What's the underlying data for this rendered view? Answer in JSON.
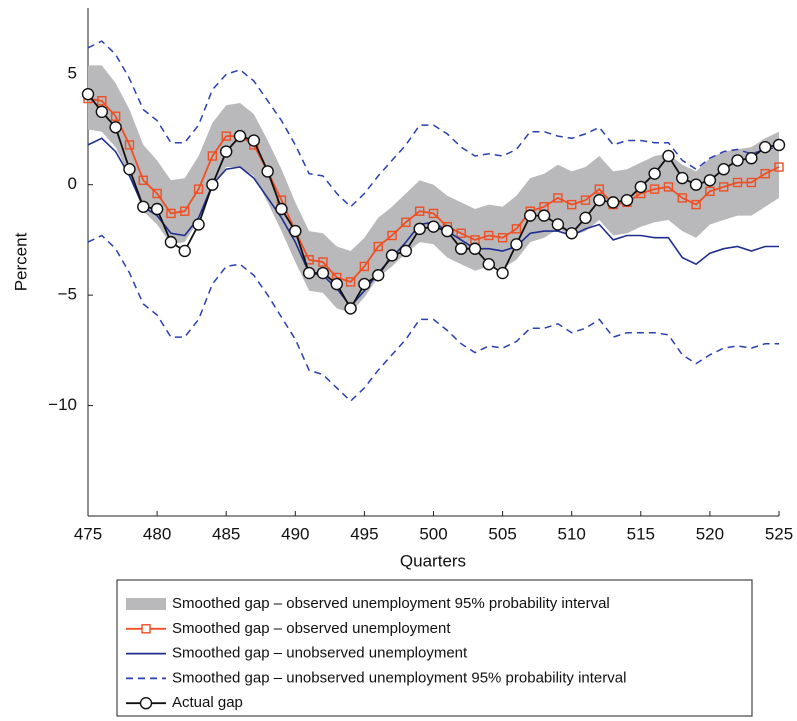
{
  "chart_data": {
    "type": "line",
    "x_label": "Quarters",
    "y_label": "Percent",
    "x": [
      475,
      476,
      477,
      478,
      479,
      480,
      481,
      482,
      483,
      484,
      485,
      486,
      487,
      488,
      489,
      490,
      491,
      492,
      493,
      494,
      495,
      496,
      497,
      498,
      499,
      500,
      501,
      502,
      503,
      504,
      505,
      506,
      507,
      508,
      509,
      510,
      511,
      512,
      513,
      514,
      515,
      516,
      517,
      518,
      519,
      520,
      521,
      522,
      523,
      524,
      525
    ],
    "xlim": [
      475,
      525
    ],
    "xticks": [
      475,
      480,
      485,
      490,
      495,
      500,
      505,
      510,
      515,
      520,
      525
    ],
    "ylim": [
      -15,
      8
    ],
    "yticks": [
      5,
      0,
      {
        "value": -5,
        "label": "−5"
      },
      {
        "value": -10,
        "label": "−10"
      }
    ],
    "series": [
      {
        "name": "Smoothed gap – observed unemployment 95% probability interval",
        "style": "band",
        "color": "#b9b9bb",
        "upper": [
          5.4,
          5.4,
          4.6,
          3.4,
          1.8,
          1.1,
          0.2,
          0.3,
          1.3,
          2.8,
          3.6,
          3.7,
          3.2,
          2.0,
          0.7,
          -0.8,
          -2.1,
          -2.2,
          -2.8,
          -3.0,
          -2.4,
          -1.5,
          -1.0,
          -0.4,
          0.2,
          0.0,
          -0.5,
          -0.8,
          -1.1,
          -0.9,
          -1.0,
          -0.5,
          0.3,
          0.5,
          0.9,
          0.6,
          0.8,
          1.3,
          0.6,
          0.7,
          1.0,
          1.3,
          1.4,
          0.9,
          0.6,
          1.2,
          1.5,
          1.6,
          1.7,
          2.1,
          2.4
        ],
        "lower": [
          2.5,
          2.4,
          1.7,
          0.4,
          -1.2,
          -1.8,
          -2.7,
          -2.6,
          -1.6,
          -0.1,
          0.8,
          0.8,
          0.4,
          -0.8,
          -2.1,
          -3.5,
          -4.8,
          -4.9,
          -5.6,
          -5.8,
          -5.1,
          -4.2,
          -3.7,
          -3.1,
          -2.6,
          -2.7,
          -3.3,
          -3.6,
          -3.9,
          -3.7,
          -3.8,
          -3.4,
          -2.6,
          -2.4,
          -2.0,
          -2.3,
          -2.1,
          -1.6,
          -2.3,
          -2.2,
          -1.9,
          -1.7,
          -1.6,
          -2.1,
          -2.4,
          -1.8,
          -1.6,
          -1.4,
          -1.4,
          -1.0,
          -0.6
        ]
      },
      {
        "name": "Smoothed gap – observed unemployment",
        "style": "square",
        "color": "#f04e23",
        "values": [
          3.9,
          3.8,
          3.1,
          1.8,
          0.2,
          -0.4,
          -1.3,
          -1.2,
          -0.2,
          1.3,
          2.2,
          2.2,
          1.8,
          0.6,
          -0.7,
          -2.1,
          -3.4,
          -3.5,
          -4.2,
          -4.4,
          -3.7,
          -2.8,
          -2.3,
          -1.7,
          -1.2,
          -1.3,
          -1.9,
          -2.2,
          -2.5,
          -2.3,
          -2.4,
          -2.0,
          -1.2,
          -1.0,
          -0.6,
          -0.9,
          -0.7,
          -0.2,
          -0.9,
          -0.8,
          -0.4,
          -0.2,
          -0.1,
          -0.6,
          -0.9,
          -0.3,
          -0.1,
          0.1,
          0.1,
          0.5,
          0.8
        ]
      },
      {
        "name": "Smoothed gap – unobserved unemployment",
        "style": "solid",
        "color": "#1f2f8f",
        "values": [
          1.8,
          2.1,
          1.5,
          0.4,
          -1.0,
          -1.4,
          -2.2,
          -2.3,
          -1.5,
          0.0,
          0.7,
          0.8,
          0.3,
          -0.6,
          -1.5,
          -2.6,
          -4.0,
          -4.1,
          -4.7,
          -5.5,
          -4.8,
          -4.0,
          -3.3,
          -2.6,
          -1.8,
          -1.7,
          -2.1,
          -2.5,
          -2.9,
          -2.9,
          -3.0,
          -2.8,
          -2.2,
          -2.1,
          -2.1,
          -2.3,
          -2.0,
          -1.8,
          -2.5,
          -2.3,
          -2.3,
          -2.4,
          -2.4,
          -3.3,
          -3.6,
          -3.1,
          -2.9,
          -2.8,
          -3.0,
          -2.8,
          -2.8
        ]
      },
      {
        "name": "Smoothed gap – unobserved unemployment 95% probability interval",
        "style": "dashed",
        "color": "#2a3fb0",
        "upper": [
          6.2,
          6.5,
          5.9,
          4.8,
          3.4,
          2.9,
          1.9,
          1.9,
          2.7,
          4.3,
          5.0,
          5.2,
          4.7,
          3.8,
          2.9,
          1.8,
          0.5,
          0.4,
          -0.4,
          -1.0,
          -0.4,
          0.4,
          1.1,
          1.8,
          2.7,
          2.7,
          2.3,
          1.7,
          1.3,
          1.4,
          1.3,
          1.6,
          2.4,
          2.4,
          2.2,
          2.1,
          2.3,
          2.6,
          1.8,
          2.0,
          2.0,
          1.9,
          1.9,
          1.1,
          0.7,
          1.2,
          1.5,
          1.6,
          1.4,
          1.6,
          1.7
        ],
        "lower": [
          -2.6,
          -2.3,
          -2.9,
          -4.0,
          -5.4,
          -5.9,
          -6.9,
          -6.9,
          -6.1,
          -4.5,
          -3.7,
          -3.6,
          -4.1,
          -5.0,
          -6.0,
          -7.0,
          -8.4,
          -8.6,
          -9.2,
          -9.8,
          -9.2,
          -8.4,
          -7.7,
          -7.0,
          -6.1,
          -6.1,
          -6.6,
          -7.2,
          -7.6,
          -7.3,
          -7.4,
          -7.1,
          -6.5,
          -6.5,
          -6.3,
          -6.7,
          -6.5,
          -6.1,
          -6.9,
          -6.7,
          -6.7,
          -6.7,
          -6.8,
          -7.7,
          -8.1,
          -7.7,
          -7.4,
          -7.3,
          -7.4,
          -7.2,
          -7.2
        ]
      },
      {
        "name": "Actual gap",
        "style": "circle",
        "color": "#111111",
        "values": [
          4.1,
          3.3,
          2.6,
          0.7,
          -1.0,
          -1.1,
          -2.6,
          -3.0,
          -1.8,
          0.0,
          1.5,
          2.2,
          2.0,
          0.6,
          -1.1,
          -2.1,
          -4.0,
          -4.0,
          -4.5,
          -5.6,
          -4.5,
          -4.1,
          -3.2,
          -3.0,
          -2.0,
          -1.9,
          -2.1,
          -2.9,
          -2.9,
          -3.6,
          -4.0,
          -2.7,
          -1.4,
          -1.4,
          -1.8,
          -2.2,
          -1.5,
          -0.7,
          -0.8,
          -0.7,
          -0.1,
          0.5,
          1.3,
          0.3,
          0.0,
          0.2,
          0.7,
          1.1,
          1.2,
          1.7,
          1.8
        ]
      }
    ]
  }
}
